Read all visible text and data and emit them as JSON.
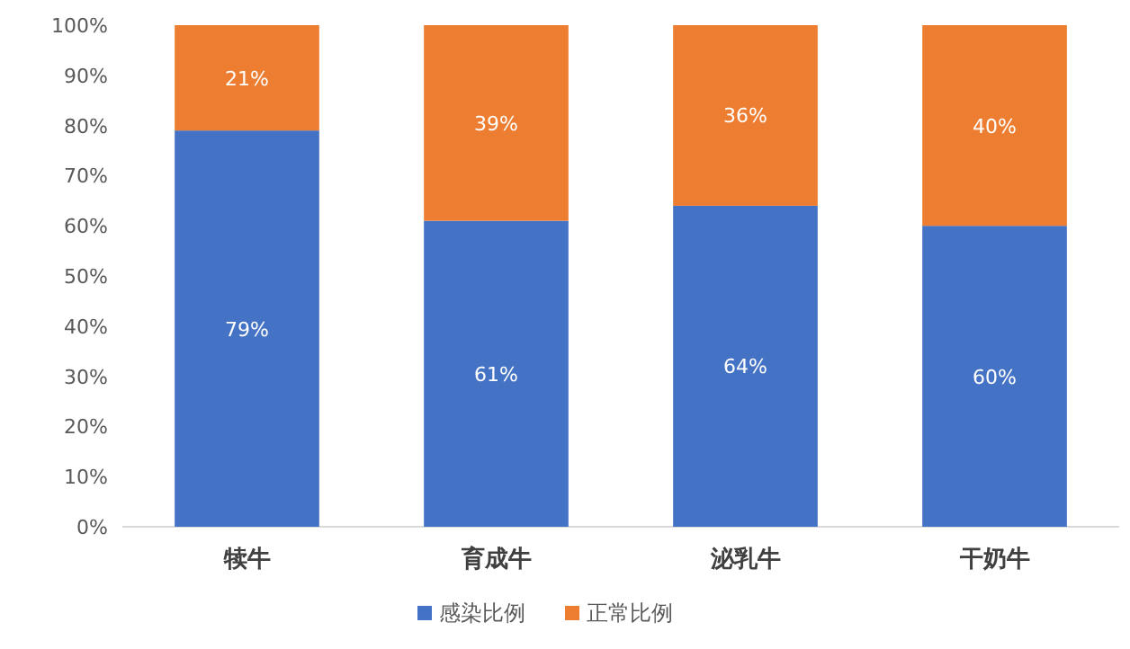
{
  "chart_data": {
    "type": "bar",
    "stacked": true,
    "categories": [
      "犊牛",
      "育成牛",
      "泌乳牛",
      "干奶牛"
    ],
    "series": [
      {
        "name": "感染比例",
        "color": "#4472c4",
        "values": [
          79,
          61,
          64,
          60
        ],
        "value_labels": [
          "79%",
          "61%",
          "64%",
          "60%"
        ]
      },
      {
        "name": "正常比例",
        "color": "#ed7d31",
        "values": [
          21,
          39,
          36,
          40
        ],
        "value_labels": [
          "21%",
          "39%",
          "36%",
          "40%"
        ]
      }
    ],
    "ylim": [
      0,
      100
    ],
    "yticks": [
      {
        "value": 0,
        "label": "0%"
      },
      {
        "value": 10,
        "label": "10%"
      },
      {
        "value": 20,
        "label": "20%"
      },
      {
        "value": 30,
        "label": "30%"
      },
      {
        "value": 40,
        "label": "40%"
      },
      {
        "value": 50,
        "label": "50%"
      },
      {
        "value": 60,
        "label": "60%"
      },
      {
        "value": 70,
        "label": "70%"
      },
      {
        "value": 80,
        "label": "80%"
      },
      {
        "value": 90,
        "label": "90%"
      },
      {
        "value": 100,
        "label": "100%"
      }
    ],
    "legend": "bottom"
  }
}
